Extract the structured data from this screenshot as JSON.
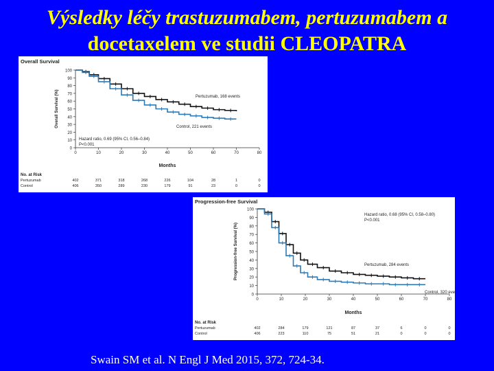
{
  "slide": {
    "title_line1": "Výsledky léčy trastuzumabem, pertuzumabem a",
    "title_line2": "docetaxelem ve studii CLEOPATRA",
    "footer": "Swain SM et al. N Engl J Med 2015, 372, 724-34."
  },
  "colors": {
    "background": "#0000ff",
    "title": "#ffff00",
    "footer": "#ffffff",
    "pertuzumab": "#111111",
    "control": "#2a7ab8"
  },
  "chart_data": [
    {
      "type": "line",
      "title": "Overall Survival",
      "xlabel": "Months",
      "ylabel": "Overall Survival (%)",
      "xlim": [
        0,
        80
      ],
      "ylim": [
        0,
        100
      ],
      "xticks": [
        0,
        10,
        20,
        30,
        40,
        50,
        60,
        70,
        80
      ],
      "yticks": [
        0,
        10,
        20,
        30,
        40,
        50,
        60,
        70,
        80,
        90,
        100
      ],
      "series": [
        {
          "name": "Pertuzumab, 168 events",
          "x": [
            0,
            3,
            6,
            10,
            15,
            20,
            25,
            30,
            35,
            40,
            45,
            50,
            55,
            60,
            65,
            70
          ],
          "y": [
            100,
            98,
            94,
            89,
            82,
            76,
            70,
            66,
            62,
            59,
            56,
            53,
            51,
            49,
            48,
            47
          ]
        },
        {
          "name": "Control, 221 events",
          "x": [
            0,
            3,
            6,
            10,
            15,
            20,
            25,
            30,
            35,
            40,
            45,
            50,
            55,
            60,
            65,
            70
          ],
          "y": [
            100,
            97,
            92,
            85,
            76,
            68,
            61,
            55,
            50,
            46,
            43,
            41,
            39,
            38,
            37,
            37
          ]
        }
      ],
      "annotation": "Hazard ratio, 0.69 (95% CI, 0.56–0.84)\nP<0.001",
      "risk_table": {
        "header": "No. at Risk",
        "rows": [
          {
            "label": "Pertuzumab",
            "values": [
              "402",
              "371",
              "318",
              "268",
              "226",
              "104",
              "28",
              "1",
              "0"
            ]
          },
          {
            "label": "Control",
            "values": [
              "406",
              "350",
              "289",
              "230",
              "179",
              "91",
              "23",
              "0",
              "0"
            ]
          }
        ]
      }
    },
    {
      "type": "line",
      "title": "Progression-free Survival",
      "xlabel": "Months",
      "ylabel": "Progression-free Survival (%)",
      "xlim": [
        0,
        80
      ],
      "ylim": [
        0,
        100
      ],
      "xticks": [
        0,
        10,
        20,
        30,
        40,
        50,
        60,
        70,
        80
      ],
      "yticks": [
        0,
        10,
        20,
        30,
        40,
        50,
        60,
        70,
        80,
        90,
        100
      ],
      "series": [
        {
          "name": "Pertuzumab, 284 events",
          "x": [
            0,
            3,
            6,
            9,
            12,
            15,
            18,
            21,
            25,
            30,
            35,
            40,
            45,
            50,
            55,
            60,
            65,
            70
          ],
          "y": [
            100,
            96,
            85,
            71,
            58,
            48,
            40,
            35,
            31,
            27,
            25,
            23,
            22,
            21,
            20,
            19,
            18,
            18
          ]
        },
        {
          "name": "Control, 320 events",
          "x": [
            0,
            3,
            6,
            9,
            12,
            15,
            18,
            21,
            25,
            30,
            35,
            40,
            45,
            50,
            55,
            60,
            65,
            70
          ],
          "y": [
            100,
            94,
            78,
            60,
            45,
            33,
            25,
            20,
            17,
            15,
            14,
            13,
            12,
            12,
            11,
            11,
            11,
            11
          ]
        }
      ],
      "annotation": "Hazard ratio, 0.68 (95% CI, 0.58–0.80)\nP<0.001",
      "risk_table": {
        "header": "No. at Risk",
        "rows": [
          {
            "label": "Pertuzumab",
            "values": [
              "402",
              "284",
              "179",
              "121",
              "87",
              "37",
              "6",
              "0",
              "0"
            ]
          },
          {
            "label": "Control",
            "values": [
              "406",
              "223",
              "110",
              "75",
              "51",
              "21",
              "0",
              "0",
              "0"
            ]
          }
        ]
      }
    }
  ]
}
